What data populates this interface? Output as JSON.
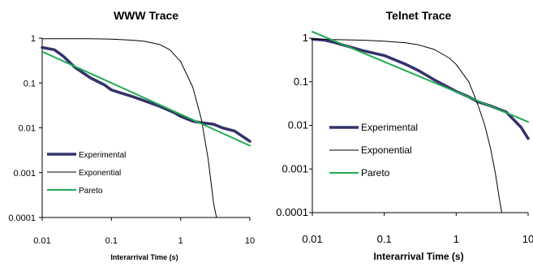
{
  "chart_data": [
    {
      "type": "line",
      "title": "WWW Trace",
      "xlabel": "Interarrival Time (s)",
      "ylabel": "",
      "x_scale": "log",
      "y_scale": "log",
      "xlim": [
        0.01,
        10
      ],
      "ylim": [
        0.0001,
        1
      ],
      "x_ticks": [
        "0.01",
        "0.1",
        "1",
        "10"
      ],
      "y_ticks": [
        "0.0001",
        "0.001",
        "0.01",
        "0.1",
        "1"
      ],
      "grid": false,
      "legend_position": "lower-left",
      "series": [
        {
          "name": "Experimental",
          "color": "#33336b",
          "x": [
            0.01,
            0.015,
            0.02,
            0.03,
            0.05,
            0.08,
            0.1,
            0.2,
            0.3,
            0.5,
            0.8,
            1,
            1.5,
            2,
            3,
            4,
            6,
            10
          ],
          "y": [
            0.62,
            0.55,
            0.4,
            0.22,
            0.13,
            0.09,
            0.07,
            0.05,
            0.04,
            0.03,
            0.022,
            0.018,
            0.014,
            0.013,
            0.012,
            0.01,
            0.0085,
            0.005
          ]
        },
        {
          "name": "Exponential",
          "color": "#000000",
          "x": [
            0.01,
            0.05,
            0.1,
            0.2,
            0.3,
            0.5,
            0.7,
            1,
            1.5,
            2,
            2.5,
            3,
            3.3
          ],
          "y": [
            0.97,
            0.97,
            0.95,
            0.9,
            0.85,
            0.72,
            0.55,
            0.3,
            0.08,
            0.015,
            0.002,
            0.0002,
            0.0001
          ]
        },
        {
          "name": "Pareto",
          "color": "#22aa55",
          "x": [
            0.01,
            10
          ],
          "y": [
            0.5,
            0.004
          ]
        }
      ]
    },
    {
      "type": "line",
      "title": "Telnet Trace",
      "xlabel": "Interarrival Time (s)",
      "ylabel": "",
      "x_scale": "log",
      "y_scale": "log",
      "xlim": [
        0.01,
        10
      ],
      "ylim": [
        0.0001,
        1
      ],
      "x_ticks": [
        "0.01",
        "0.1",
        "1",
        "10"
      ],
      "y_ticks": [
        "0.0001",
        "0.001",
        "0.01",
        "0.1",
        "1"
      ],
      "grid": false,
      "legend_position": "middle-left",
      "series": [
        {
          "name": "Experimental",
          "color": "#33336b",
          "x": [
            0.01,
            0.015,
            0.02,
            0.05,
            0.1,
            0.2,
            0.3,
            0.5,
            1,
            1.5,
            2,
            3,
            5,
            8,
            10
          ],
          "y": [
            0.95,
            0.9,
            0.8,
            0.52,
            0.4,
            0.25,
            0.18,
            0.11,
            0.06,
            0.045,
            0.035,
            0.028,
            0.02,
            0.009,
            0.005
          ]
        },
        {
          "name": "Exponential",
          "color": "#000000",
          "x": [
            0.01,
            0.05,
            0.1,
            0.2,
            0.3,
            0.5,
            0.8,
            1,
            1.5,
            2,
            2.5,
            3,
            3.5,
            4,
            4.3
          ],
          "y": [
            0.95,
            0.9,
            0.85,
            0.78,
            0.7,
            0.55,
            0.35,
            0.25,
            0.1,
            0.03,
            0.01,
            0.003,
            0.0008,
            0.0002,
            0.0001
          ]
        },
        {
          "name": "Pareto",
          "color": "#22aa55",
          "x": [
            0.01,
            10
          ],
          "y": [
            1.4,
            0.012
          ]
        }
      ]
    }
  ]
}
